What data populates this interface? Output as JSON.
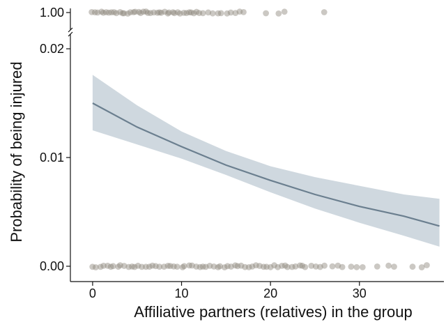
{
  "chart_data": {
    "type": "line",
    "title": "",
    "xlabel": "Affiliative partners (relatives) in the group",
    "ylabel": "Probability of being injured",
    "xlim": [
      -2.5,
      39.5
    ],
    "ylim": [
      0,
      0.02
    ],
    "broken_axis": true,
    "upper_break_value": 1.0,
    "x_ticks": [
      0,
      10,
      20,
      30
    ],
    "x_tick_labels": [
      "0",
      "10",
      "20",
      "30"
    ],
    "y_ticks": [
      0,
      0.01,
      0.02
    ],
    "y_tick_labels": [
      "0.00",
      "0.01",
      "0.02"
    ],
    "upper_tick_label": "1.00",
    "grid": false,
    "colors": {
      "line": "#6b7f8f",
      "ribbon": "#cfd8df",
      "points": "#8c847a"
    },
    "series": [
      {
        "type": "line",
        "x": [
          0,
          5,
          10,
          15,
          20,
          25,
          30,
          35,
          39
        ],
        "y": [
          0.015,
          0.0128,
          0.011,
          0.0093,
          0.0079,
          0.0066,
          0.0055,
          0.0046,
          0.0037
        ]
      },
      {
        "type": "ribbon",
        "x": [
          0,
          5,
          10,
          15,
          20,
          25,
          30,
          35,
          39
        ],
        "lower": [
          0.0125,
          0.0112,
          0.0099,
          0.0084,
          0.0068,
          0.0053,
          0.004,
          0.0028,
          0.0018
        ],
        "upper": [
          0.0176,
          0.0148,
          0.0124,
          0.0106,
          0.0092,
          0.0082,
          0.0074,
          0.0066,
          0.0062
        ]
      },
      {
        "type": "scatter",
        "y_value": 1,
        "x": [
          0,
          0.3,
          0.6,
          0.9,
          1.2,
          1.5,
          1.8,
          2.1,
          2.4,
          2.7,
          3,
          3.3,
          3.6,
          3.9,
          4.2,
          4.5,
          4.8,
          5.1,
          5.4,
          5.7,
          6,
          6.3,
          6.6,
          6.9,
          7.2,
          7.5,
          7.8,
          8.1,
          8.4,
          8.7,
          9,
          9.3,
          9.6,
          9.9,
          10.2,
          10.5,
          10.8,
          11.1,
          11.4,
          11.7,
          12,
          12.5,
          13,
          13.5,
          14,
          14.5,
          15,
          15.5,
          16,
          16.5,
          17,
          19.5,
          21,
          21.6,
          26
        ]
      },
      {
        "type": "scatter",
        "y_value": 0,
        "x": [
          0,
          0.4,
          0.8,
          1.2,
          1.6,
          2,
          2.4,
          2.8,
          3.2,
          3.6,
          4,
          4.4,
          4.8,
          5.2,
          5.6,
          6,
          6.4,
          6.8,
          7.2,
          7.6,
          8,
          8.4,
          8.8,
          9.2,
          9.6,
          10,
          10.4,
          10.8,
          11.2,
          11.6,
          12,
          12.4,
          12.8,
          13.2,
          13.6,
          14,
          14.4,
          14.8,
          15.2,
          15.6,
          16,
          16.4,
          16.8,
          17.2,
          17.6,
          18,
          18.4,
          18.8,
          19.2,
          19.6,
          20,
          20.4,
          20.8,
          21.2,
          21.6,
          22,
          22.4,
          22.8,
          23.2,
          23.6,
          24,
          24.5,
          25,
          25.5,
          26,
          27,
          27.5,
          28,
          29,
          29.8,
          30.4,
          32,
          33.2,
          33.8,
          36,
          37,
          37.5
        ]
      }
    ]
  }
}
